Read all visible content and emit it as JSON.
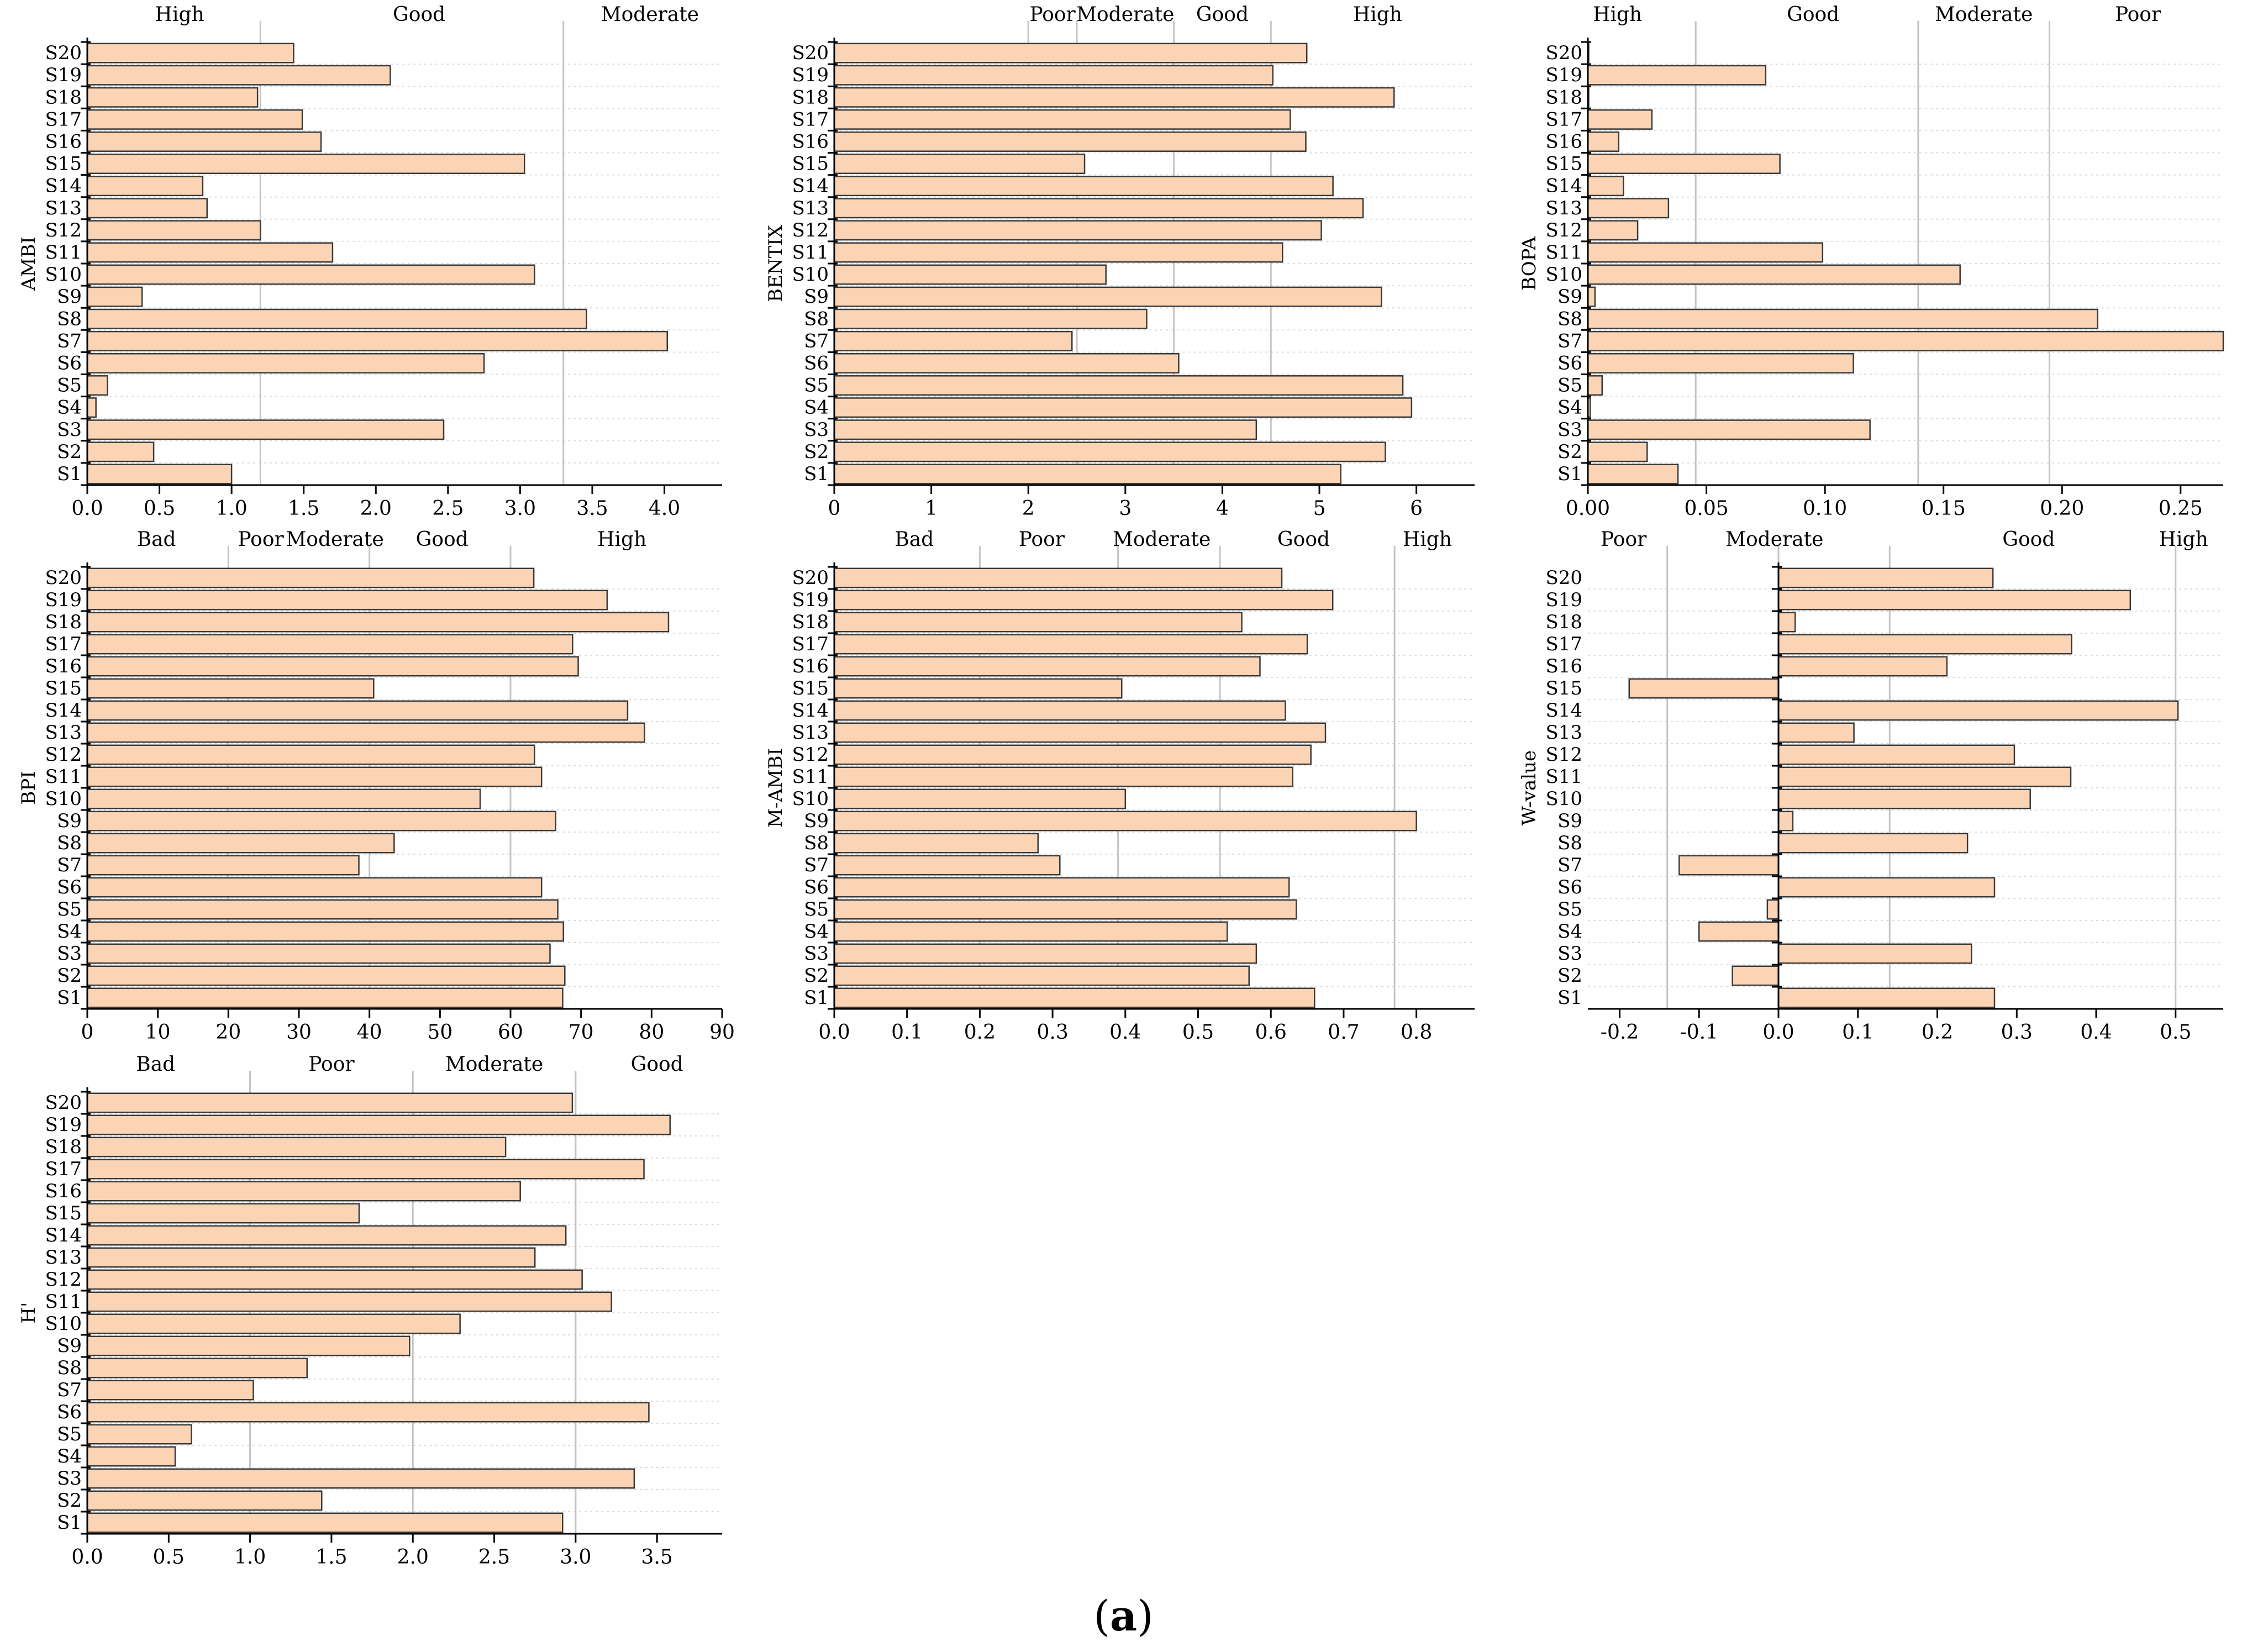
{
  "figure": {
    "caption_open": "(",
    "caption_label": "a",
    "caption_close": ")",
    "colors": {
      "bar_fill": "#fad4b4",
      "bar_stroke": "#3a3a3a",
      "threshold": "#c4c4c4",
      "grid": "#dddddd"
    }
  },
  "chart_data": [
    {
      "type": "bar",
      "orientation": "horizontal",
      "ylabel": "AMBI",
      "categories": [
        "S1",
        "S2",
        "S3",
        "S4",
        "S5",
        "S6",
        "S7",
        "S8",
        "S9",
        "S10",
        "S11",
        "S12",
        "S13",
        "S14",
        "S15",
        "S16",
        "S17",
        "S18",
        "S19",
        "S20"
      ],
      "values": [
        1.0,
        0.46,
        2.47,
        0.06,
        0.14,
        2.75,
        4.02,
        3.46,
        0.38,
        3.1,
        1.7,
        1.2,
        0.83,
        0.8,
        3.03,
        1.62,
        1.49,
        1.18,
        2.1,
        1.43
      ],
      "xlim": [
        0,
        4.4
      ],
      "xticks": [
        0.0,
        0.5,
        1.0,
        1.5,
        2.0,
        2.5,
        3.0,
        3.5,
        4.0
      ],
      "tick_labels": [
        "0.0",
        "0.5",
        "1.0",
        "1.5",
        "2.0",
        "2.5",
        "3.0",
        "3.5",
        "4.0"
      ],
      "thresholds": [
        1.2,
        3.3
      ],
      "class_labels": [
        {
          "text": "High",
          "at": 0.64
        },
        {
          "text": "Good",
          "at": 2.3
        },
        {
          "text": "Moderate",
          "at": 3.9
        }
      ]
    },
    {
      "type": "bar",
      "orientation": "horizontal",
      "ylabel": "BENTIX",
      "categories": [
        "S1",
        "S2",
        "S3",
        "S4",
        "S5",
        "S6",
        "S7",
        "S8",
        "S9",
        "S10",
        "S11",
        "S12",
        "S13",
        "S14",
        "S15",
        "S16",
        "S17",
        "S18",
        "S19",
        "S20"
      ],
      "values": [
        5.22,
        5.68,
        4.35,
        5.95,
        5.86,
        3.55,
        2.45,
        3.22,
        5.64,
        2.8,
        4.62,
        5.02,
        5.45,
        5.14,
        2.58,
        4.86,
        4.7,
        5.77,
        4.52,
        4.87
      ],
      "xlim": [
        0,
        6.6
      ],
      "xticks": [
        0,
        1,
        2,
        3,
        4,
        5,
        6
      ],
      "tick_labels": [
        "0",
        "1",
        "2",
        "3",
        "4",
        "5",
        "6"
      ],
      "thresholds": [
        2.0,
        2.5,
        3.5,
        4.5
      ],
      "class_labels": [
        {
          "text": "Poor",
          "at": 2.25
        },
        {
          "text": "Moderate",
          "at": 3.0
        },
        {
          "text": "Good",
          "at": 4.0
        },
        {
          "text": "High",
          "at": 5.6
        }
      ]
    },
    {
      "type": "bar",
      "orientation": "horizontal",
      "ylabel": "BOPA",
      "categories": [
        "S1",
        "S2",
        "S3",
        "S4",
        "S5",
        "S6",
        "S7",
        "S8",
        "S9",
        "S10",
        "S11",
        "S12",
        "S13",
        "S14",
        "S15",
        "S16",
        "S17",
        "S18",
        "S19",
        "S20"
      ],
      "values": [
        0.038,
        0.025,
        0.119,
        0.001,
        0.006,
        0.112,
        0.268,
        0.215,
        0.003,
        0.157,
        0.099,
        0.021,
        0.034,
        0.015,
        0.081,
        0.013,
        0.027,
        0.0,
        0.075,
        0.0
      ],
      "xlim": [
        0,
        0.268
      ],
      "xticks": [
        0.0,
        0.05,
        0.1,
        0.15,
        0.2,
        0.25
      ],
      "tick_labels": [
        "0.00",
        "0.05",
        "0.10",
        "0.15",
        "0.20",
        "0.25"
      ],
      "thresholds": [
        0.04549,
        0.13934,
        0.19469
      ],
      "class_labels": [
        {
          "text": "High",
          "at": 0.0125
        },
        {
          "text": "Good",
          "at": 0.095
        },
        {
          "text": "Moderate",
          "at": 0.167
        },
        {
          "text": "Poor",
          "at": 0.232
        }
      ]
    },
    {
      "type": "bar",
      "orientation": "horizontal",
      "ylabel": "BPI",
      "categories": [
        "S1",
        "S2",
        "S3",
        "S4",
        "S5",
        "S6",
        "S7",
        "S8",
        "S9",
        "S10",
        "S11",
        "S12",
        "S13",
        "S14",
        "S15",
        "S16",
        "S17",
        "S18",
        "S19",
        "S20"
      ],
      "values": [
        67.4,
        67.7,
        65.6,
        67.5,
        66.7,
        64.4,
        38.5,
        43.5,
        66.4,
        55.7,
        64.4,
        63.4,
        79.0,
        76.6,
        40.6,
        69.6,
        68.8,
        82.4,
        73.7,
        63.3
      ],
      "xlim": [
        0,
        90
      ],
      "xticks": [
        0,
        10,
        20,
        30,
        40,
        50,
        60,
        70,
        80,
        90
      ],
      "tick_labels": [
        "0",
        "10",
        "20",
        "30",
        "40",
        "50",
        "60",
        "70",
        "80",
        "90"
      ],
      "thresholds": [
        20,
        40,
        60
      ],
      "class_labels": [
        {
          "text": "Bad",
          "at": 9.8
        },
        {
          "text": "Poor",
          "at": 24.6
        },
        {
          "text": "Moderate",
          "at": 35.1
        },
        {
          "text": "Good",
          "at": 50.3
        },
        {
          "text": "High",
          "at": 75.8
        }
      ]
    },
    {
      "type": "bar",
      "orientation": "horizontal",
      "ylabel": "M-AMBI",
      "categories": [
        "S1",
        "S2",
        "S3",
        "S4",
        "S5",
        "S6",
        "S7",
        "S8",
        "S9",
        "S10",
        "S11",
        "S12",
        "S13",
        "S14",
        "S15",
        "S16",
        "S17",
        "S18",
        "S19",
        "S20"
      ],
      "values": [
        0.66,
        0.57,
        0.58,
        0.54,
        0.635,
        0.625,
        0.31,
        0.28,
        0.8,
        0.4,
        0.63,
        0.655,
        0.675,
        0.62,
        0.395,
        0.585,
        0.65,
        0.56,
        0.685,
        0.615
      ],
      "xlim": [
        0,
        0.88
      ],
      "xticks": [
        0.0,
        0.1,
        0.2,
        0.3,
        0.4,
        0.5,
        0.6,
        0.7,
        0.8
      ],
      "tick_labels": [
        "0.0",
        "0.1",
        "0.2",
        "0.3",
        "0.4",
        "0.5",
        "0.6",
        "0.7",
        "0.8"
      ],
      "thresholds": [
        0.2,
        0.39,
        0.53,
        0.77
      ],
      "class_labels": [
        {
          "text": "Bad",
          "at": 0.11
        },
        {
          "text": "Poor",
          "at": 0.285
        },
        {
          "text": "Moderate",
          "at": 0.45
        },
        {
          "text": "Good",
          "at": 0.645
        },
        {
          "text": "High",
          "at": 0.815
        }
      ]
    },
    {
      "type": "bar",
      "orientation": "horizontal",
      "ylabel": "W-value",
      "categories": [
        "S1",
        "S2",
        "S3",
        "S4",
        "S5",
        "S6",
        "S7",
        "S8",
        "S9",
        "S10",
        "S11",
        "S12",
        "S13",
        "S14",
        "S15",
        "S16",
        "S17",
        "S18",
        "S19",
        "S20"
      ],
      "values": [
        0.272,
        -0.058,
        0.243,
        -0.1,
        -0.014,
        0.272,
        -0.125,
        0.238,
        0.018,
        0.317,
        0.368,
        0.297,
        0.095,
        0.503,
        -0.188,
        0.212,
        0.369,
        0.021,
        0.443,
        0.27
      ],
      "xlim": [
        -0.24,
        0.56
      ],
      "xticks": [
        -0.2,
        -0.1,
        0.0,
        0.1,
        0.2,
        0.3,
        0.4,
        0.5
      ],
      "tick_labels": [
        "-0.2",
        "-0.1",
        "0.0",
        "0.1",
        "0.2",
        "0.3",
        "0.4",
        "0.5"
      ],
      "thresholds": [
        -0.14,
        0.0,
        0.14,
        0.5
      ],
      "class_labels": [
        {
          "text": "Poor",
          "at": -0.195
        },
        {
          "text": "Moderate",
          "at": -0.005
        },
        {
          "text": "Good",
          "at": 0.315
        },
        {
          "text": "High",
          "at": 0.51
        }
      ]
    },
    {
      "type": "bar",
      "orientation": "horizontal",
      "ylabel": "H'",
      "categories": [
        "S1",
        "S2",
        "S3",
        "S4",
        "S5",
        "S6",
        "S7",
        "S8",
        "S9",
        "S10",
        "S11",
        "S12",
        "S13",
        "S14",
        "S15",
        "S16",
        "S17",
        "S18",
        "S19",
        "S20"
      ],
      "values": [
        2.92,
        1.44,
        3.36,
        0.54,
        0.64,
        3.45,
        1.02,
        1.35,
        1.98,
        2.29,
        3.22,
        3.04,
        2.75,
        2.94,
        1.67,
        2.66,
        3.42,
        2.57,
        3.58,
        2.98
      ],
      "xlim": [
        0,
        3.9
      ],
      "xticks": [
        0.0,
        0.5,
        1.0,
        1.5,
        2.0,
        2.5,
        3.0,
        3.5
      ],
      "tick_labels": [
        "0.0",
        "0.5",
        "1.0",
        "1.5",
        "2.0",
        "2.5",
        "3.0",
        "3.5"
      ],
      "thresholds": [
        1.0,
        2.0,
        3.0
      ],
      "class_labels": [
        {
          "text": "Bad",
          "at": 0.42
        },
        {
          "text": "Poor",
          "at": 1.5
        },
        {
          "text": "Moderate",
          "at": 2.5
        },
        {
          "text": "Good",
          "at": 3.5
        }
      ]
    }
  ]
}
